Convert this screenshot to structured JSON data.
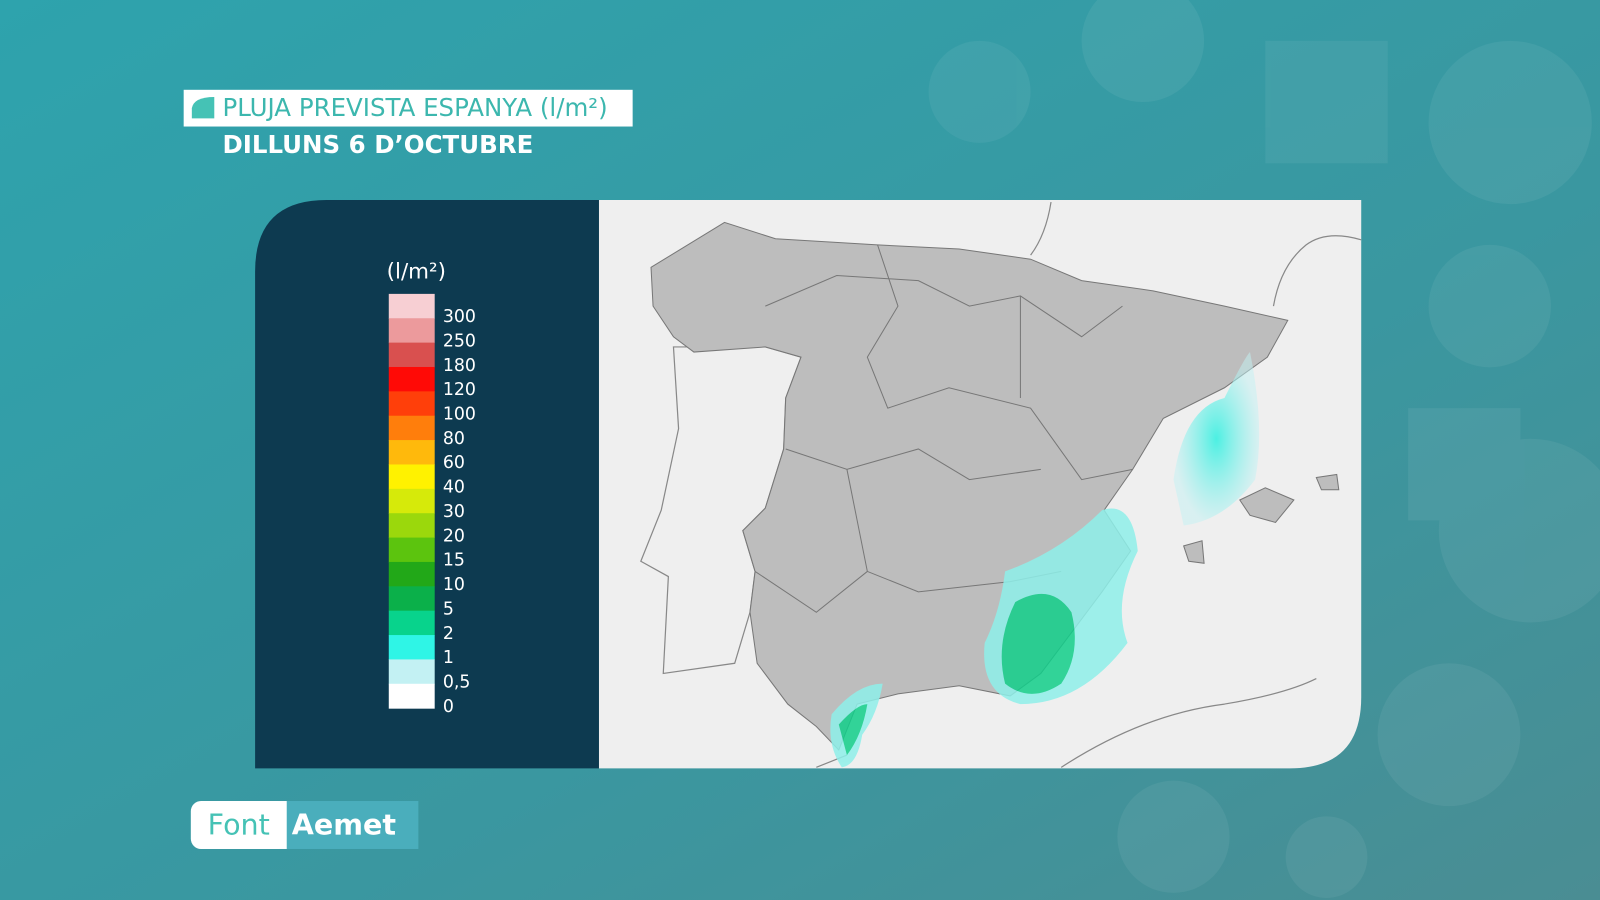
{
  "header": {
    "title": "PLUJA PREVISTA ESPANYA (l/m²)",
    "subtitle": "DILLUNS 6 D’OCTUBRE"
  },
  "legend": {
    "unit": "(l/m²)",
    "entries": [
      {
        "label": "300",
        "color": "#f7cfd3"
      },
      {
        "label": "250",
        "color": "#ec9a9c"
      },
      {
        "label": "180",
        "color": "#d9504f"
      },
      {
        "label": "120",
        "color": "#ff0a06"
      },
      {
        "label": "100",
        "color": "#ff3f0a"
      },
      {
        "label": "80",
        "color": "#ff7e0c"
      },
      {
        "label": "60",
        "color": "#ffb90c"
      },
      {
        "label": "40",
        "color": "#fff200"
      },
      {
        "label": "30",
        "color": "#d6ea0a"
      },
      {
        "label": "20",
        "color": "#9bd80c"
      },
      {
        "label": "15",
        "color": "#5cc40e"
      },
      {
        "label": "10",
        "color": "#22a818"
      },
      {
        "label": "5",
        "color": "#0bb04a"
      },
      {
        "label": "2",
        "color": "#08d38c"
      },
      {
        "label": "1",
        "color": "#2ff5e6"
      },
      {
        "label": "0,5",
        "color": "#c3f1f3"
      },
      {
        "label": "0",
        "color": "#ffffff"
      }
    ]
  },
  "source": {
    "label": "Font",
    "name": "Aemet"
  }
}
